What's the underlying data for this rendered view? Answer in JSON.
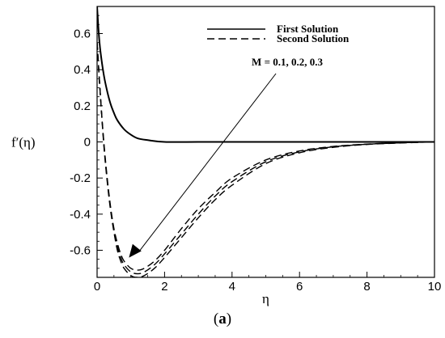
{
  "chart_data": {
    "type": "line",
    "title": "",
    "xlabel": "η",
    "ylabel": "f′(η)",
    "xlim": [
      0,
      10
    ],
    "ylim": [
      -0.75,
      0.75
    ],
    "x_ticks": [
      "0",
      "2",
      "4",
      "6",
      "8",
      "10"
    ],
    "y_ticks": [
      "0.6",
      "0.4",
      "0.2",
      "0",
      "-0.2",
      "-0.4",
      "-0.6"
    ],
    "grid": false,
    "legend_position": "top-right",
    "series": [
      {
        "name": "First Solution",
        "style": "solid",
        "x": [
          0,
          0.05,
          0.1,
          0.2,
          0.3,
          0.4,
          0.5,
          0.6,
          0.8,
          1.0,
          1.2,
          1.5,
          2.0,
          3.0,
          4.0,
          6.0,
          8.0,
          10.0
        ],
        "y": [
          0.75,
          0.6,
          0.5,
          0.37,
          0.28,
          0.21,
          0.16,
          0.12,
          0.07,
          0.04,
          0.02,
          0.01,
          0.0,
          0.0,
          0.0,
          0.0,
          0.0,
          0.0
        ]
      },
      {
        "name": "Second Solution",
        "style": "dashed",
        "x": [
          0,
          0.1,
          0.2,
          0.3,
          0.4,
          0.5,
          0.6,
          0.7,
          0.8,
          1.0,
          1.2,
          1.4,
          1.7,
          2.0,
          2.5,
          3.0,
          3.5,
          4.0,
          5.0,
          6.0,
          7.0,
          8.0,
          9.0,
          10.0
        ],
        "y": [
          0.55,
          0.25,
          0.0,
          -0.2,
          -0.36,
          -0.48,
          -0.56,
          -0.62,
          -0.66,
          -0.7,
          -0.71,
          -0.7,
          -0.66,
          -0.6,
          -0.48,
          -0.37,
          -0.28,
          -0.2,
          -0.1,
          -0.05,
          -0.025,
          -0.012,
          -0.005,
          0.0
        ]
      },
      {
        "name": "",
        "style": "dashed",
        "x": [
          0,
          0.1,
          0.2,
          0.3,
          0.4,
          0.5,
          0.6,
          0.7,
          0.8,
          1.0,
          1.2,
          1.4,
          1.7,
          2.0,
          2.5,
          3.0,
          3.5,
          4.0,
          5.0,
          6.0,
          7.0,
          8.0,
          9.0,
          10.0
        ],
        "y": [
          0.55,
          0.25,
          -0.01,
          -0.21,
          -0.37,
          -0.49,
          -0.58,
          -0.64,
          -0.68,
          -0.72,
          -0.73,
          -0.72,
          -0.68,
          -0.62,
          -0.51,
          -0.4,
          -0.3,
          -0.22,
          -0.11,
          -0.055,
          -0.027,
          -0.013,
          -0.005,
          0.0
        ]
      },
      {
        "name": "",
        "style": "dashed",
        "x": [
          0,
          0.1,
          0.2,
          0.3,
          0.4,
          0.5,
          0.6,
          0.7,
          0.8,
          1.0,
          1.2,
          1.4,
          1.7,
          2.0,
          2.5,
          3.0,
          3.5,
          4.0,
          5.0,
          6.0,
          7.0,
          8.0,
          9.0,
          10.0
        ],
        "y": [
          0.55,
          0.25,
          -0.02,
          -0.22,
          -0.38,
          -0.5,
          -0.6,
          -0.66,
          -0.7,
          -0.74,
          -0.75,
          -0.74,
          -0.7,
          -0.64,
          -0.53,
          -0.42,
          -0.32,
          -0.24,
          -0.12,
          -0.06,
          -0.03,
          -0.014,
          -0.006,
          0.0
        ]
      }
    ],
    "annotation": {
      "text": "M = 0.1, 0.2, 0.3",
      "arrow_from": [
        6.5,
        0.45
      ],
      "arrow_to": [
        0.8,
        -0.65
      ]
    }
  },
  "caption": {
    "open": "(",
    "label": "a",
    "close": ")"
  }
}
